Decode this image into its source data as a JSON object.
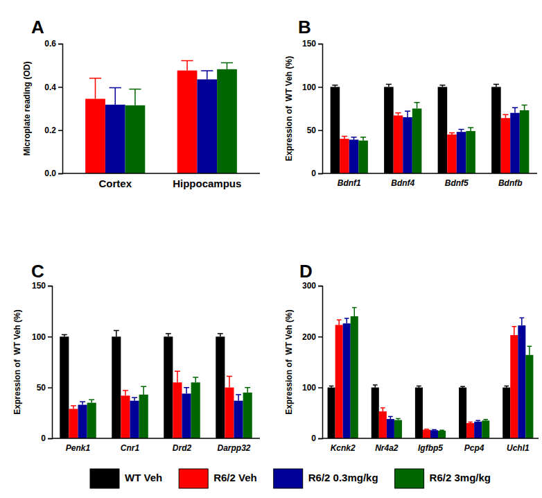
{
  "chart_data": [
    {
      "type": "bar",
      "title": "A",
      "ylabel": "Microplate reading (OD)",
      "categories": [
        "Cortex",
        "Hippocampus"
      ],
      "ylim": [
        0,
        0.6
      ],
      "yticks": [
        {
          "value": 0,
          "label": "0.0"
        },
        0.2,
        0.4,
        0.6
      ],
      "series": [
        {
          "name": "R6/2 Veh",
          "color": "#ff0000",
          "values": [
            0.345,
            0.476
          ],
          "errors": [
            0.095,
            0.045
          ]
        },
        {
          "name": "R6/2 0.3mg/kg",
          "color": "#000099",
          "values": [
            0.318,
            0.435
          ],
          "errors": [
            0.078,
            0.04
          ]
        },
        {
          "name": "R6/2 3mg/kg",
          "color": "#006600",
          "values": [
            0.315,
            0.482
          ],
          "errors": [
            0.075,
            0.03
          ]
        }
      ]
    },
    {
      "type": "bar",
      "title": "B",
      "ylabel": "Expression of  WT Veh (%)",
      "categories": [
        "Bdnf1",
        "Bdnf4",
        "Bdnf5",
        "Bdnfb"
      ],
      "ylim": [
        0,
        150
      ],
      "yticks": [
        0,
        50,
        100,
        150
      ],
      "legend": "bottom",
      "series": [
        {
          "name": "WT Veh",
          "color": "#000000",
          "values": [
            100,
            100,
            100,
            100
          ],
          "errors": [
            2,
            3,
            2,
            3
          ]
        },
        {
          "name": "R6/2 Veh",
          "color": "#ff0000",
          "values": [
            40,
            67,
            45,
            64
          ],
          "errors": [
            3,
            3,
            2,
            4
          ]
        },
        {
          "name": "R6/2 0.3mg/kg",
          "color": "#000099",
          "values": [
            39,
            65,
            48,
            70
          ],
          "errors": [
            3,
            7,
            3,
            6
          ]
        },
        {
          "name": "R6/2 3mg/kg",
          "color": "#006600",
          "values": [
            38,
            75,
            49,
            73
          ],
          "errors": [
            4,
            7,
            4,
            6
          ]
        }
      ]
    },
    {
      "type": "bar",
      "title": "C",
      "ylabel": "Expression of  WT Veh (%)",
      "categories": [
        "Penk1",
        "Cnr1",
        "Drd2",
        "Darpp32"
      ],
      "ylim": [
        0,
        150
      ],
      "yticks": [
        0,
        50,
        100,
        150
      ],
      "series": [
        {
          "name": "WT Veh",
          "color": "#000000",
          "values": [
            100,
            100,
            100,
            100
          ],
          "errors": [
            2,
            6,
            3,
            3
          ]
        },
        {
          "name": "R6/2 Veh",
          "color": "#ff0000",
          "values": [
            29,
            42,
            55,
            50
          ],
          "errors": [
            3,
            5,
            11,
            11
          ]
        },
        {
          "name": "R6/2 0.3mg/kg",
          "color": "#000099",
          "values": [
            33,
            37,
            44,
            37
          ],
          "errors": [
            3,
            3,
            6,
            6
          ]
        },
        {
          "name": "R6/2 3mg/kg",
          "color": "#006600",
          "values": [
            35,
            43,
            55,
            45
          ],
          "errors": [
            3,
            8,
            5,
            5
          ]
        }
      ]
    },
    {
      "type": "bar",
      "title": "D",
      "ylabel": "Expression of  WT Veh (%)",
      "categories": [
        "Kcnk2",
        "Nr4a2",
        "Igfbp5",
        "Pcp4",
        "Uchl1"
      ],
      "ylim": [
        0,
        300
      ],
      "yticks": [
        0,
        100,
        200,
        300
      ],
      "series": [
        {
          "name": "WT Veh",
          "color": "#000000",
          "values": [
            100,
            100,
            100,
            100,
            100
          ],
          "errors": [
            3,
            5,
            3,
            2,
            3
          ]
        },
        {
          "name": "R6/2 Veh",
          "color": "#ff0000",
          "values": [
            223,
            53,
            17,
            30,
            203
          ],
          "errors": [
            10,
            7,
            1,
            2,
            17
          ]
        },
        {
          "name": "R6/2 0.3mg/kg",
          "color": "#000099",
          "values": [
            226,
            38,
            16,
            33,
            222
          ],
          "errors": [
            10,
            5,
            1,
            2,
            15
          ]
        },
        {
          "name": "R6/2 3mg/kg",
          "color": "#006600",
          "values": [
            240,
            36,
            15,
            35,
            164
          ],
          "errors": [
            17,
            3,
            1,
            2,
            17
          ]
        }
      ]
    }
  ]
}
